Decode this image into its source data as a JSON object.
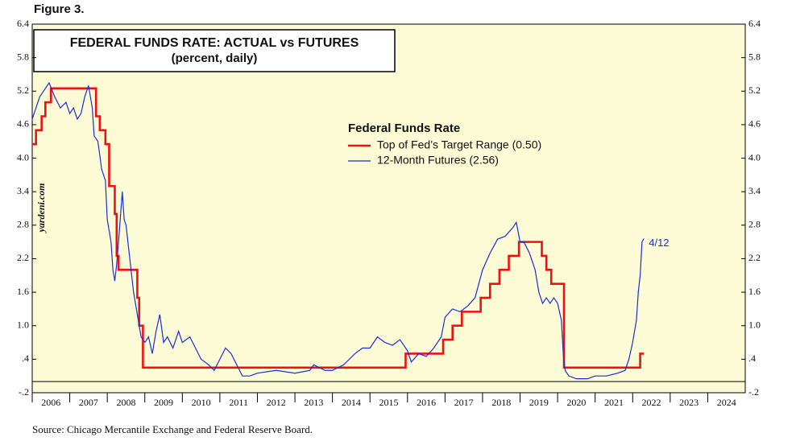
{
  "chart_data": {
    "type": "line",
    "figure_label": "Figure 3.",
    "title": "FEDERAL FUNDS RATE: ACTUAL vs FUTURES",
    "subtitle": "(percent, daily)",
    "watermark": "yardeni.com",
    "source": "Source: Chicago Mercantile Exchange and Federal Reserve Board.",
    "legend_title": "Federal Funds Rate",
    "annotation": "4/12",
    "xlim": [
      2006,
      2025
    ],
    "xticks": [
      2006,
      2007,
      2008,
      2009,
      2010,
      2011,
      2012,
      2013,
      2014,
      2015,
      2016,
      2017,
      2018,
      2019,
      2020,
      2021,
      2022,
      2023,
      2024
    ],
    "ylim": [
      -0.2,
      6.4
    ],
    "yticks": [
      6.4,
      5.8,
      5.2,
      4.6,
      {
        "value": 4,
        "label": "4.0"
      },
      3.4,
      2.8,
      2.2,
      1.6,
      {
        "value": 1,
        "label": "1.0"
      },
      {
        "value": 0.4,
        "label": ".4"
      },
      {
        "value": -0.2,
        "label": "-.2"
      }
    ],
    "series": [
      {
        "name": "Top of Fed’s Target Range (0.50)",
        "color": "#ee1111",
        "step": true,
        "x": [
          2006.0,
          2006.1,
          2006.25,
          2006.35,
          2006.5,
          2007.7,
          2007.8,
          2007.95,
          2008.05,
          2008.2,
          2008.25,
          2008.3,
          2008.8,
          2008.85,
          2008.95,
          2015.95,
          2016.95,
          2017.2,
          2017.45,
          2017.95,
          2018.2,
          2018.45,
          2018.7,
          2018.97,
          2019.58,
          2019.7,
          2019.83,
          2020.17,
          2022.2,
          2022.3
        ],
        "values": [
          4.25,
          4.5,
          4.75,
          5.0,
          5.25,
          4.75,
          4.5,
          4.25,
          3.5,
          3.0,
          2.25,
          2.0,
          1.5,
          1.0,
          0.25,
          0.5,
          0.75,
          1.0,
          1.25,
          1.5,
          1.75,
          2.0,
          2.25,
          2.5,
          2.25,
          2.0,
          1.75,
          0.25,
          0.5,
          0.5
        ]
      },
      {
        "name": "12-Month Futures (2.56)",
        "color": "#1a2fd6",
        "step": false,
        "x": [
          2006.0,
          2006.1,
          2006.2,
          2006.3,
          2006.45,
          2006.6,
          2006.75,
          2006.9,
          2007.0,
          2007.1,
          2007.2,
          2007.3,
          2007.4,
          2007.5,
          2007.6,
          2007.65,
          2007.75,
          2007.85,
          2007.95,
          2008.0,
          2008.1,
          2008.15,
          2008.2,
          2008.25,
          2008.3,
          2008.4,
          2008.45,
          2008.5,
          2008.6,
          2008.7,
          2008.8,
          2008.9,
          2009.0,
          2009.1,
          2009.2,
          2009.3,
          2009.4,
          2009.5,
          2009.6,
          2009.75,
          2009.9,
          2010.0,
          2010.2,
          2010.35,
          2010.5,
          2010.7,
          2010.85,
          2011.0,
          2011.15,
          2011.3,
          2011.45,
          2011.6,
          2011.8,
          2012.0,
          2012.5,
          2013.0,
          2013.4,
          2013.5,
          2013.8,
          2014.0,
          2014.3,
          2014.6,
          2014.8,
          2015.0,
          2015.2,
          2015.4,
          2015.6,
          2015.8,
          2016.0,
          2016.1,
          2016.3,
          2016.5,
          2016.7,
          2016.9,
          2017.0,
          2017.2,
          2017.4,
          2017.6,
          2017.8,
          2018.0,
          2018.2,
          2018.4,
          2018.6,
          2018.8,
          2018.9,
          2019.0,
          2019.1,
          2019.25,
          2019.4,
          2019.5,
          2019.6,
          2019.7,
          2019.8,
          2019.9,
          2020.0,
          2020.1,
          2020.15,
          2020.2,
          2020.3,
          2020.5,
          2020.8,
          2021.0,
          2021.3,
          2021.6,
          2021.8,
          2021.9,
          2022.0,
          2022.1,
          2022.15,
          2022.2,
          2022.25,
          2022.3
        ],
        "values": [
          4.7,
          4.9,
          5.1,
          5.2,
          5.35,
          5.1,
          4.9,
          5.0,
          4.8,
          4.9,
          4.7,
          4.8,
          5.1,
          5.3,
          4.9,
          4.4,
          4.3,
          3.8,
          3.6,
          2.9,
          2.5,
          2.0,
          1.8,
          2.1,
          2.5,
          3.4,
          2.9,
          2.8,
          2.2,
          1.6,
          1.2,
          0.8,
          0.7,
          0.8,
          0.5,
          0.9,
          1.2,
          0.7,
          0.8,
          0.6,
          0.9,
          0.7,
          0.8,
          0.6,
          0.4,
          0.3,
          0.2,
          0.4,
          0.6,
          0.5,
          0.3,
          0.1,
          0.1,
          0.15,
          0.2,
          0.15,
          0.2,
          0.3,
          0.2,
          0.2,
          0.3,
          0.5,
          0.6,
          0.6,
          0.8,
          0.7,
          0.65,
          0.75,
          0.55,
          0.35,
          0.5,
          0.45,
          0.6,
          0.8,
          1.15,
          1.3,
          1.25,
          1.35,
          1.5,
          2.0,
          2.3,
          2.55,
          2.6,
          2.75,
          2.85,
          2.5,
          2.5,
          2.3,
          2.0,
          1.6,
          1.4,
          1.5,
          1.4,
          1.5,
          1.4,
          1.1,
          0.5,
          0.2,
          0.1,
          0.05,
          0.05,
          0.1,
          0.1,
          0.15,
          0.2,
          0.4,
          0.7,
          1.1,
          1.6,
          1.9,
          2.5,
          2.56
        ]
      }
    ]
  }
}
